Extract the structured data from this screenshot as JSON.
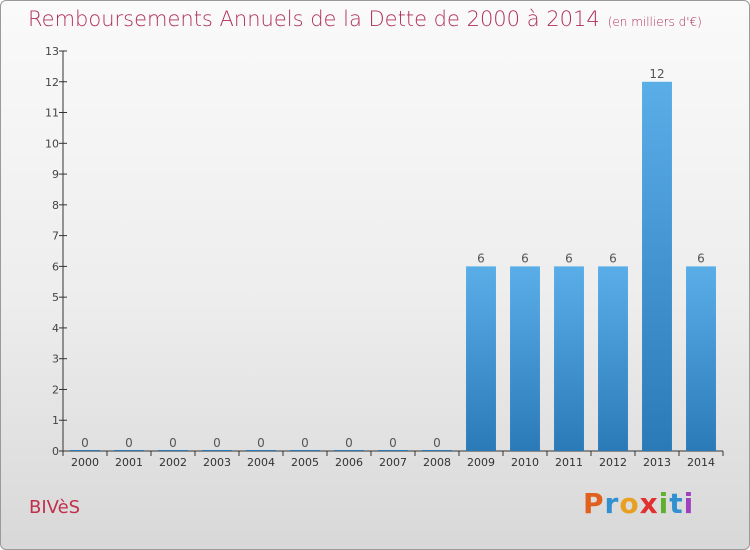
{
  "header": {
    "title": "Remboursements Annuels de la Dette de 2000 à 2014",
    "unit": "(en milliers d'€)"
  },
  "footer": {
    "commune": "BIVèS",
    "logo_letters": [
      "P",
      "r",
      "o",
      "x",
      "i",
      "t",
      "i"
    ],
    "logo_colors": [
      "#e06020",
      "#3090d0",
      "#e8a020",
      "#e03030",
      "#60b030",
      "#3090d0",
      "#a040c0"
    ]
  },
  "colors": {
    "bar_top": "#5aaee8",
    "bar_bottom": "#2a7ab8",
    "axis": "#333333",
    "grid": "#cccccc",
    "title": "#b0305a"
  },
  "chart_data": {
    "type": "bar",
    "title": "Remboursements Annuels de la Dette de 2000 à 2014",
    "subtitle": "(en milliers d'€)",
    "xlabel": "",
    "ylabel": "",
    "categories": [
      "2000",
      "2001",
      "2002",
      "2003",
      "2004",
      "2005",
      "2006",
      "2007",
      "2008",
      "2009",
      "2010",
      "2011",
      "2012",
      "2013",
      "2014"
    ],
    "values": [
      0,
      0,
      0,
      0,
      0,
      0,
      0,
      0,
      0,
      6,
      6,
      6,
      6,
      12,
      6
    ],
    "data_labels": [
      "0",
      "0",
      "0",
      "0",
      "0",
      "0",
      "0",
      "0",
      "0",
      "6",
      "6",
      "6",
      "6",
      "12",
      "6"
    ],
    "ylim": [
      0,
      13
    ],
    "yticks": [
      "0",
      "1",
      "2",
      "3",
      "4",
      "5",
      "6",
      "7",
      "8",
      "9",
      "10",
      "11",
      "12",
      "13"
    ],
    "grid": false,
    "legend": "none"
  }
}
